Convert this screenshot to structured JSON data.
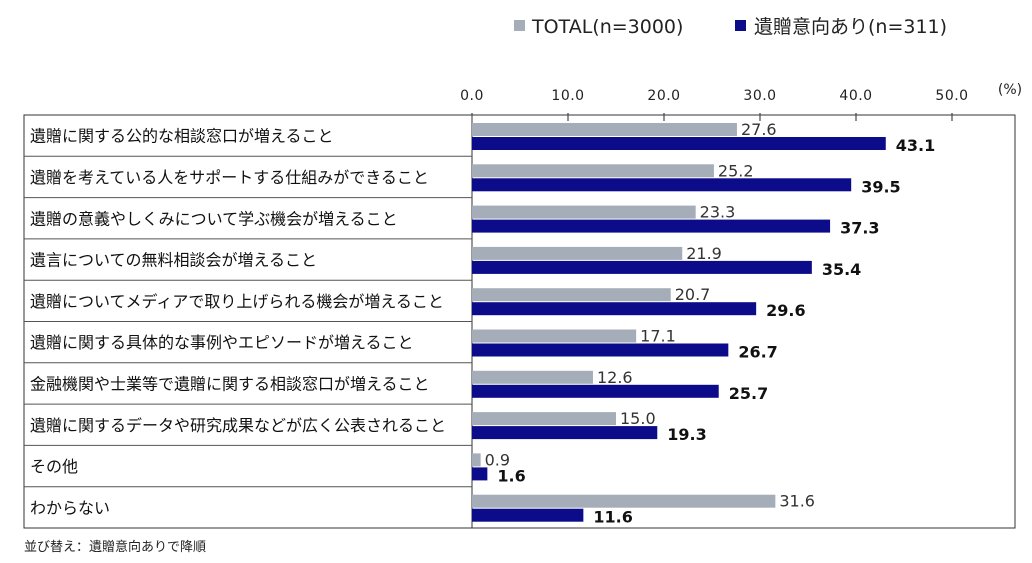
{
  "chart_data": {
    "type": "bar",
    "orientation": "horizontal",
    "unit": "(%)",
    "xlim": [
      0,
      50
    ],
    "ticks": [
      "0.0",
      "10.0",
      "20.0",
      "30.0",
      "40.0",
      "50.0"
    ],
    "grid": true,
    "legend_position": "top-right",
    "categories": [
      "遺贈に関する公的な相談窓口が増えること",
      "遺贈を考えている人をサポートする仕組みができること",
      "遺贈の意義やしくみについて学ぶ機会が増えること",
      "遺言についての無料相談会が増えること",
      "遺贈についてメディアで取り上げられる機会が増えること",
      "遺贈に関する具体的な事例やエピソードが増えること",
      "金融機関や士業等で遺贈に関する相談窓口が増えること",
      "遺贈に関するデータや研究成果などが広く公表されること",
      "その他",
      "わからない"
    ],
    "series": [
      {
        "name": "TOTAL(n=3000)",
        "color": "#a5aeb8",
        "values": [
          27.6,
          25.2,
          23.3,
          21.9,
          20.7,
          17.1,
          12.6,
          15.0,
          0.9,
          31.6
        ],
        "labels": [
          "27.6",
          "25.2",
          "23.3",
          "21.9",
          "20.7",
          "17.1",
          "12.6",
          "15.0",
          "0.9",
          "31.6"
        ]
      },
      {
        "name": "遺贈意向あり(n=311)",
        "color": "#0c0c8a",
        "values": [
          43.1,
          39.5,
          37.3,
          35.4,
          29.6,
          26.7,
          25.7,
          19.3,
          1.6,
          11.6
        ],
        "labels": [
          "43.1",
          "39.5",
          "37.3",
          "35.4",
          "29.6",
          "26.7",
          "25.7",
          "19.3",
          "1.6",
          "11.6"
        ]
      }
    ]
  },
  "footnote": "並び替え：遺贈意向ありで降順"
}
